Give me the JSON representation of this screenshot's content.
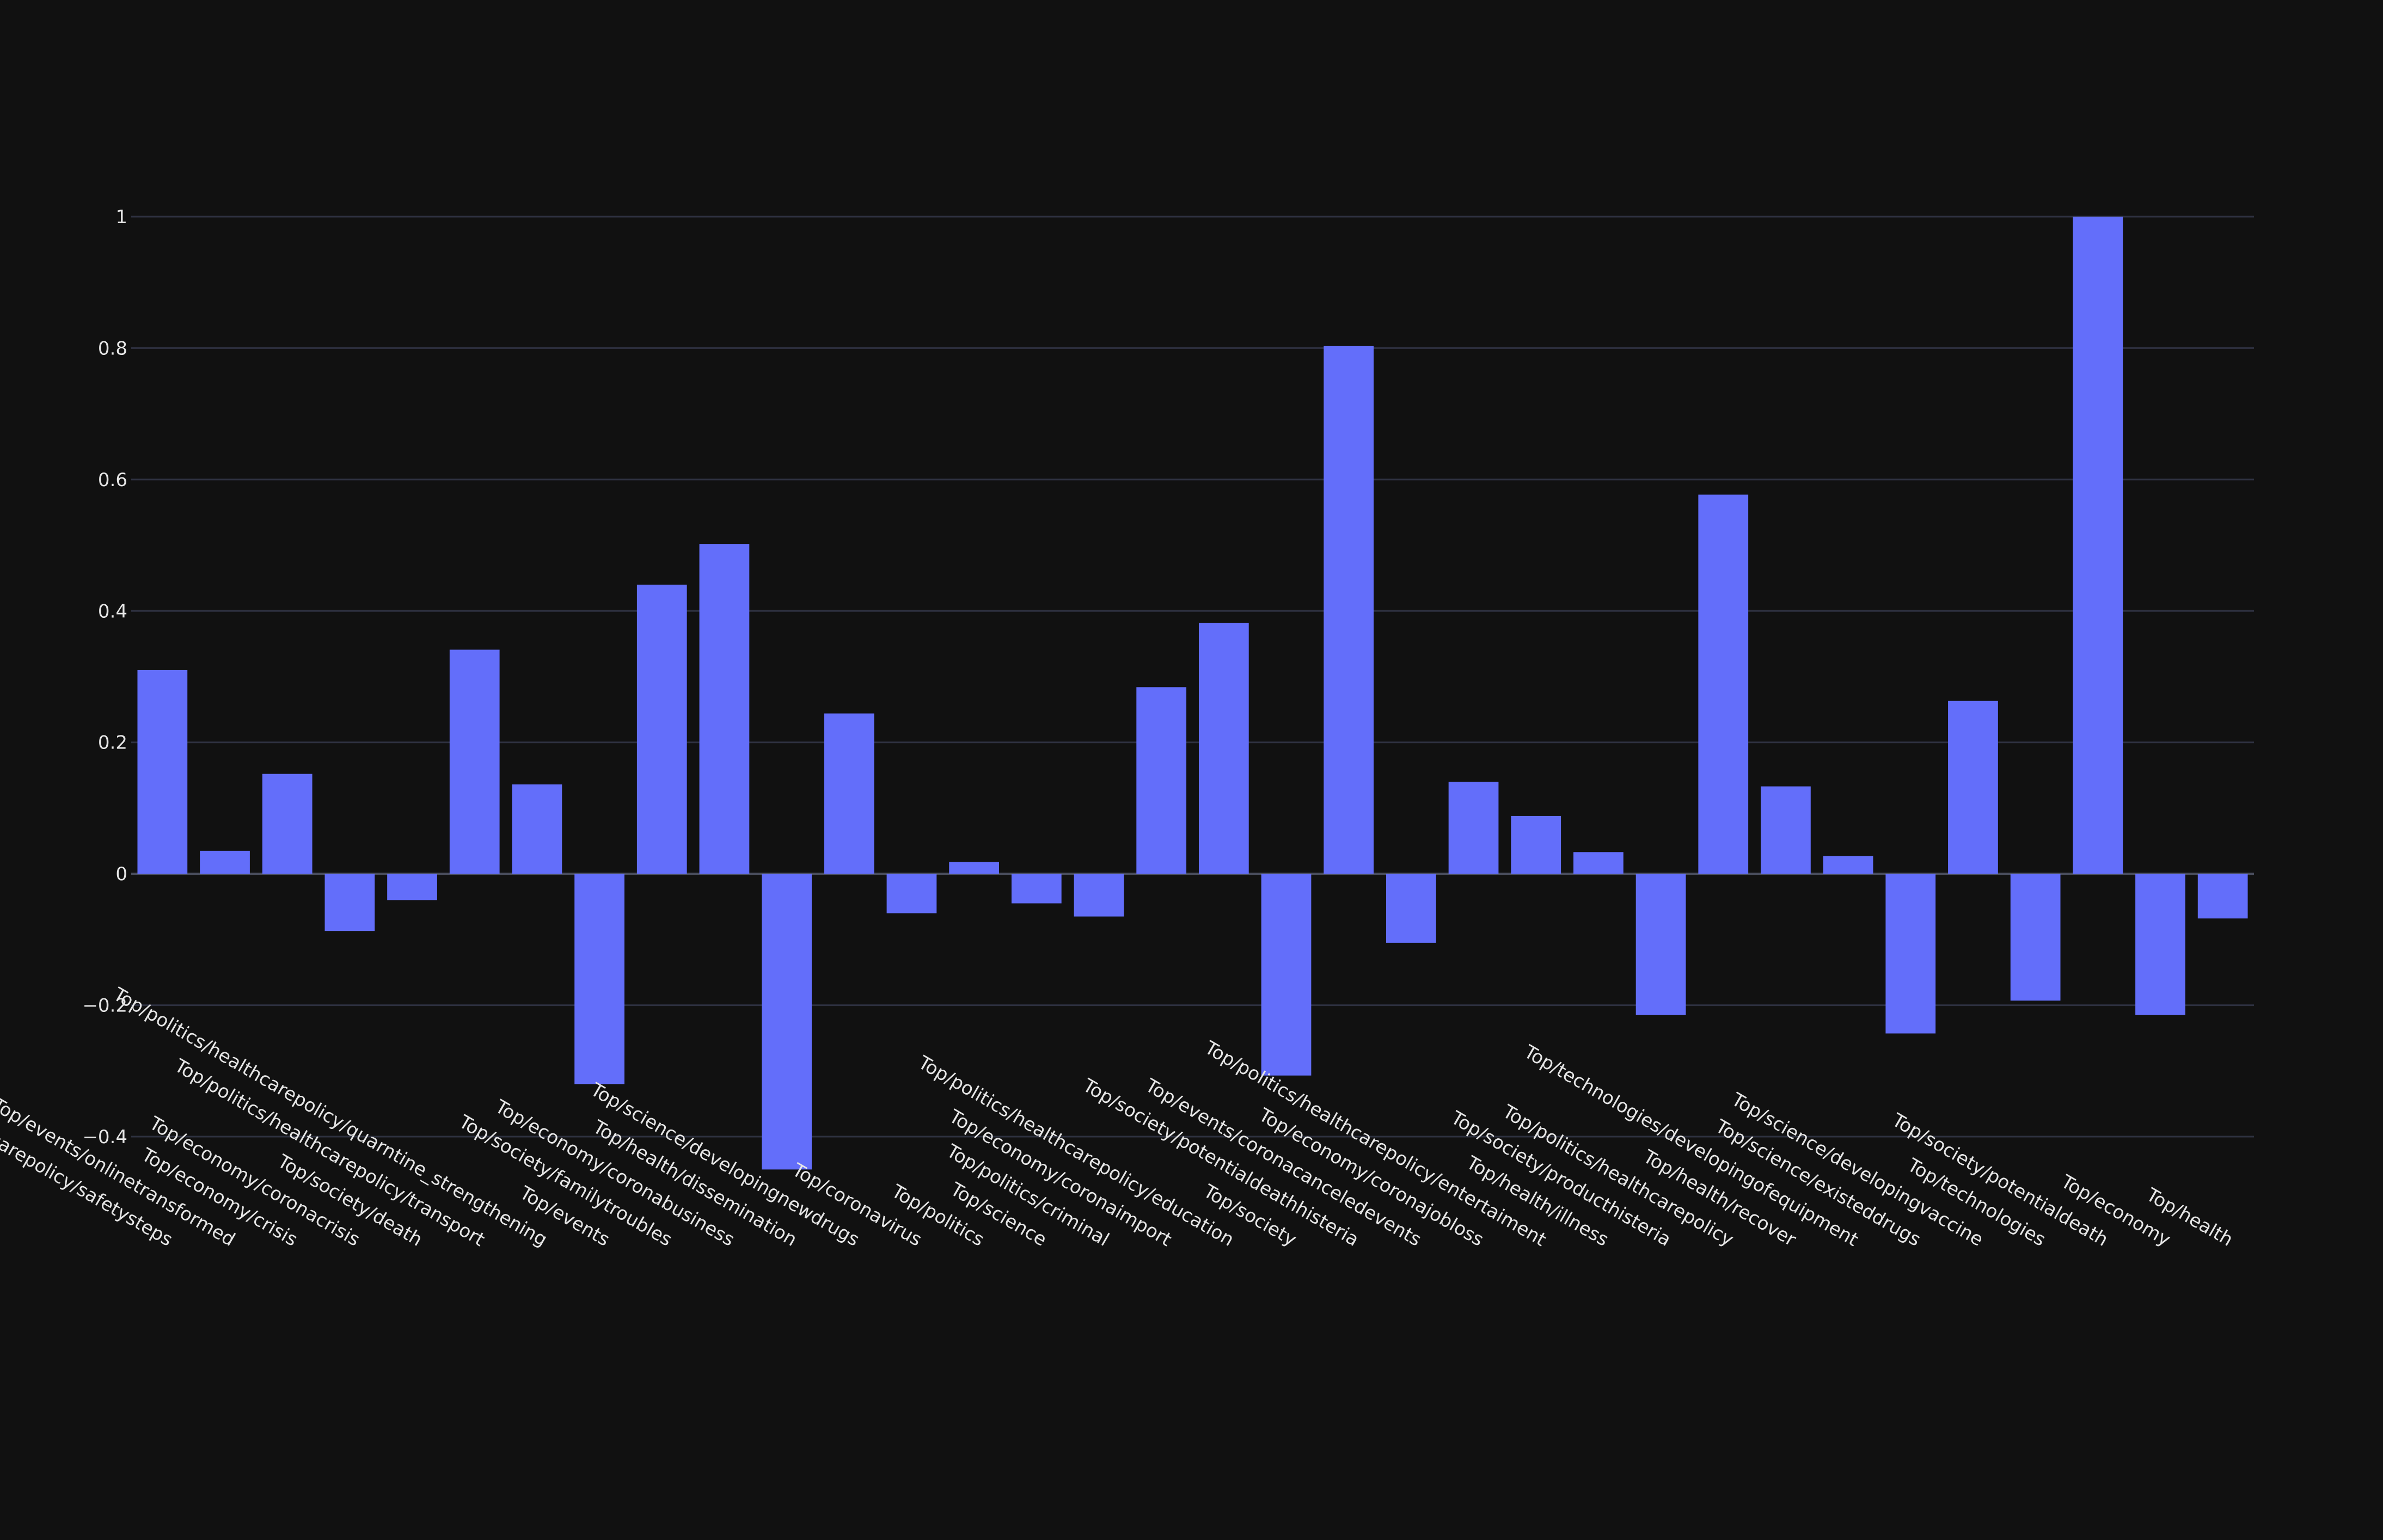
{
  "chart_data": {
    "type": "bar",
    "title": "",
    "xlabel": "",
    "ylabel": "",
    "ylim": [
      -0.5,
      1.0
    ],
    "yticks": [
      -0.4,
      -0.2,
      0,
      0.2,
      0.4,
      0.6,
      0.8,
      1
    ],
    "ytick_labels": [
      "−0.4",
      "−0.2",
      "0",
      "0.2",
      "0.4",
      "0.6",
      "0.8",
      "1"
    ],
    "grid": true,
    "bar_color": "#636efa",
    "background": "#111111",
    "categories": [
      "Top/politics/healthcarepolicy/safetysteps",
      "Top/events/onlinetransformed",
      "Top/economy/crisis",
      "Top/economy/coronacrisis",
      "Top/society/death",
      "Top/politics/healthcarepolicy/transport",
      "Top/politics/healthcarepolicy/quarntine_strengthening",
      "Top/events",
      "Top/society/familytroubles",
      "Top/economy/coronabusiness",
      "Top/health/dissemination",
      "Top/science/developingnewdrugs",
      "Top/coronavirus",
      "Top/politics",
      "Top/science",
      "Top/politics/criminal",
      "Top/economy/coronaimport",
      "Top/politics/healthcarepolicy/education",
      "Top/society",
      "Top/society/potentialdeathhisteria",
      "Top/events/coronacanceledevents",
      "Top/economy/coronajobloss",
      "Top/politics/healthcarepolicy/entertaiment",
      "Top/health/illness",
      "Top/society/producthisteria",
      "Top/politics/healthcarepolicy",
      "Top/health/recover",
      "Top/technologies/developingofequipment",
      "Top/science/existeddrugs",
      "Top/science/developingvaccine",
      "Top/technologies",
      "Top/society/potentialdeath",
      "Top/economy",
      "Top/health"
    ],
    "values": [
      0.31,
      0.035,
      0.152,
      -0.087,
      -0.04,
      0.341,
      0.136,
      -0.32,
      0.44,
      0.502,
      -0.45,
      0.244,
      -0.06,
      0.018,
      -0.045,
      -0.065,
      0.284,
      0.382,
      -0.307,
      0.803,
      -0.105,
      0.14,
      0.088,
      0.033,
      -0.215,
      0.577,
      0.133,
      0.027,
      -0.243,
      0.263,
      -0.193,
      1.0,
      -0.215,
      -0.068
    ]
  }
}
